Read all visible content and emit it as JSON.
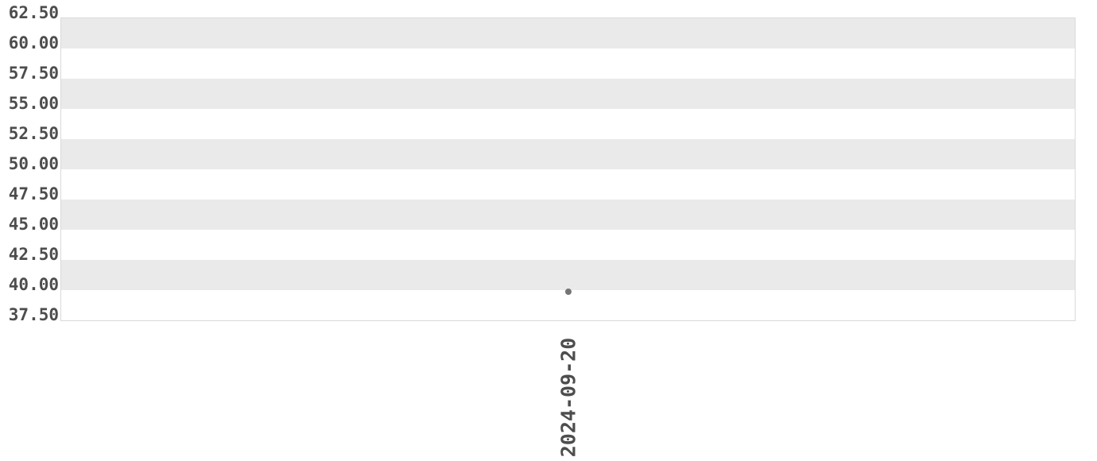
{
  "colors": {
    "background": "#ffffff",
    "band_stripe": "#eaeaea",
    "plot_border": "#d9d9d9",
    "tick_text": "#4d4d4d",
    "point": "#757575"
  },
  "chart_data": {
    "type": "scatter",
    "title": "",
    "xlabel": "",
    "ylabel": "",
    "x_categories": [
      "2024-09-20"
    ],
    "series": [
      {
        "name": "",
        "values": [
          39.9
        ]
      }
    ],
    "ylim": [
      37.5,
      62.5
    ],
    "ytick_interval": 2.5,
    "ytick_labels": [
      "62.50",
      "60.00",
      "57.50",
      "55.00",
      "52.50",
      "50.00",
      "47.50",
      "45.00",
      "42.50",
      "40.00",
      "37.50"
    ],
    "xtick_labels": [
      "2024-09-20"
    ],
    "xtick_rotation_deg": 90,
    "grid": "alternating horizontal zebra bands, no vertical gridlines",
    "legend": "none",
    "point_style": "small filled gray circle, centered horizontally"
  }
}
